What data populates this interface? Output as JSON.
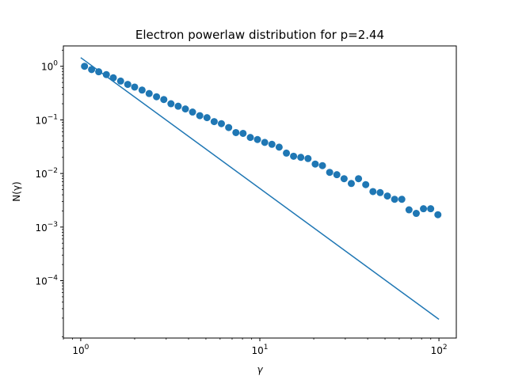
{
  "chart_data": {
    "type": "scatter",
    "title": "Electron powerlaw distribution for p=2.44",
    "xlabel": "γ",
    "ylabel": "N(γ)",
    "xscale": "log",
    "yscale": "log",
    "xlim": [
      0.8,
      125
    ],
    "ylim": [
      8.5e-06,
      2.4
    ],
    "x_ticks": [
      {
        "value": 1,
        "base": "10",
        "exp": "0"
      },
      {
        "value": 10,
        "base": "10",
        "exp": "1"
      },
      {
        "value": 100,
        "base": "10",
        "exp": "2"
      }
    ],
    "y_ticks": [
      {
        "value": 1,
        "base": "10",
        "exp": "0"
      },
      {
        "value": 0.1,
        "base": "10",
        "exp": "−1"
      },
      {
        "value": 0.01,
        "base": "10",
        "exp": "−2"
      },
      {
        "value": 0.001,
        "base": "10",
        "exp": "−3"
      },
      {
        "value": 0.0001,
        "base": "10",
        "exp": "−4"
      }
    ],
    "series": [
      {
        "kind": "scatter",
        "color": "#1f77b4",
        "points": [
          [
            1.05,
            1.0
          ],
          [
            1.15,
            0.87
          ],
          [
            1.26,
            0.79
          ],
          [
            1.39,
            0.7
          ],
          [
            1.52,
            0.61
          ],
          [
            1.67,
            0.53
          ],
          [
            1.83,
            0.46
          ],
          [
            2.0,
            0.41
          ],
          [
            2.2,
            0.36
          ],
          [
            2.41,
            0.31
          ],
          [
            2.65,
            0.27
          ],
          [
            2.91,
            0.24
          ],
          [
            3.19,
            0.2
          ],
          [
            3.5,
            0.18
          ],
          [
            3.84,
            0.16
          ],
          [
            4.21,
            0.14
          ],
          [
            4.62,
            0.12
          ],
          [
            5.07,
            0.11
          ],
          [
            5.56,
            0.093
          ],
          [
            6.1,
            0.085
          ],
          [
            6.7,
            0.072
          ],
          [
            7.35,
            0.058
          ],
          [
            8.06,
            0.056
          ],
          [
            8.85,
            0.047
          ],
          [
            9.7,
            0.043
          ],
          [
            10.65,
            0.038
          ],
          [
            11.68,
            0.035
          ],
          [
            12.82,
            0.031
          ],
          [
            14.07,
            0.024
          ],
          [
            15.43,
            0.021
          ],
          [
            16.93,
            0.02
          ],
          [
            18.58,
            0.019
          ],
          [
            20.38,
            0.015
          ],
          [
            22.36,
            0.014
          ],
          [
            24.54,
            0.0105
          ],
          [
            26.92,
            0.0095
          ],
          [
            29.54,
            0.008
          ],
          [
            32.41,
            0.0065
          ],
          [
            35.56,
            0.008
          ],
          [
            39.02,
            0.0062
          ],
          [
            42.81,
            0.0046
          ],
          [
            46.97,
            0.0044
          ],
          [
            51.54,
            0.0038
          ],
          [
            56.55,
            0.0033
          ],
          [
            62.04,
            0.0033
          ],
          [
            68.07,
            0.0021
          ],
          [
            74.69,
            0.0018
          ],
          [
            81.95,
            0.0022
          ],
          [
            89.92,
            0.0022
          ],
          [
            98.66,
            0.0017
          ]
        ]
      },
      {
        "kind": "line",
        "color": "#1f77b4",
        "points": [
          [
            1.0,
            1.45
          ],
          [
            100,
            1.9e-05
          ]
        ]
      }
    ]
  }
}
